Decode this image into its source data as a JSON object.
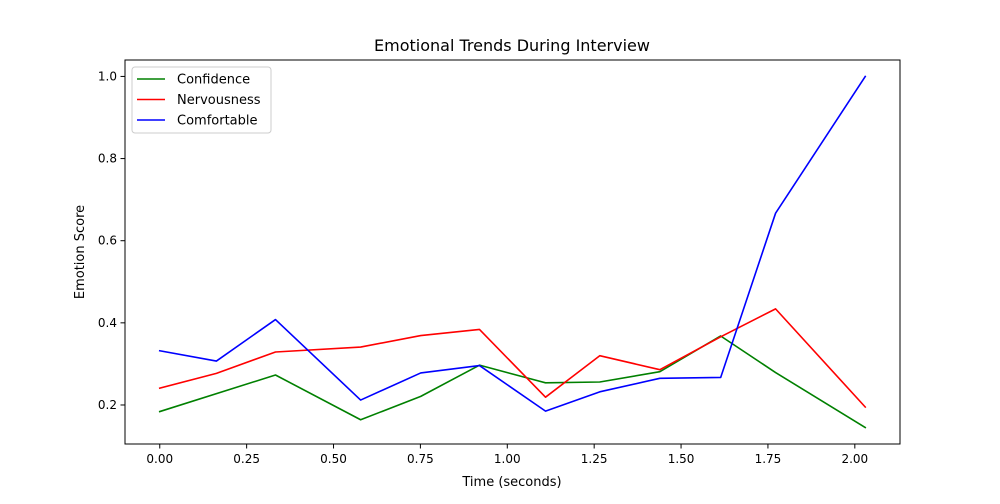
{
  "chart_data": {
    "type": "line",
    "title": "Emotional Trends During Interview",
    "xlabel": "Time (seconds)",
    "ylabel": "Emotion Score",
    "xlim": [
      -0.1,
      2.13
    ],
    "ylim": [
      0.105,
      1.04
    ],
    "xticks": [
      0.0,
      0.25,
      0.5,
      0.75,
      1.0,
      1.25,
      1.5,
      1.75,
      2.0
    ],
    "xtick_labels": [
      "0.00",
      "0.25",
      "0.50",
      "0.75",
      "1.00",
      "1.25",
      "1.50",
      "1.75",
      "2.00"
    ],
    "yticks": [
      0.2,
      0.4,
      0.6,
      0.8,
      1.0
    ],
    "ytick_labels": [
      "0.2",
      "0.4",
      "0.6",
      "0.8",
      "1.0"
    ],
    "grid": false,
    "legend_position": "top-left",
    "series": [
      {
        "name": "Confidence",
        "color": "#008000",
        "x": [
          0.0,
          0.333,
          0.578,
          0.751,
          0.92,
          1.11,
          1.266,
          1.439,
          1.614,
          1.772,
          2.03
        ],
        "y": [
          0.184,
          0.273,
          0.164,
          0.221,
          0.297,
          0.254,
          0.256,
          0.281,
          0.368,
          0.279,
          0.145
        ]
      },
      {
        "name": "Nervousness",
        "color": "#ff0000",
        "x": [
          0.0,
          0.163,
          0.333,
          0.578,
          0.751,
          0.92,
          1.11,
          1.266,
          1.439,
          1.614,
          1.772,
          2.03
        ],
        "y": [
          0.241,
          0.277,
          0.329,
          0.341,
          0.369,
          0.384,
          0.219,
          0.32,
          0.286,
          0.366,
          0.434,
          0.195
        ]
      },
      {
        "name": "Comfortable",
        "color": "#0000ff",
        "x": [
          0.0,
          0.163,
          0.333,
          0.578,
          0.751,
          0.92,
          1.11,
          1.266,
          1.439,
          1.614,
          1.772,
          2.03
        ],
        "y": [
          0.332,
          0.307,
          0.408,
          0.212,
          0.278,
          0.296,
          0.185,
          0.232,
          0.265,
          0.267,
          0.667,
          1.0
        ]
      }
    ]
  }
}
